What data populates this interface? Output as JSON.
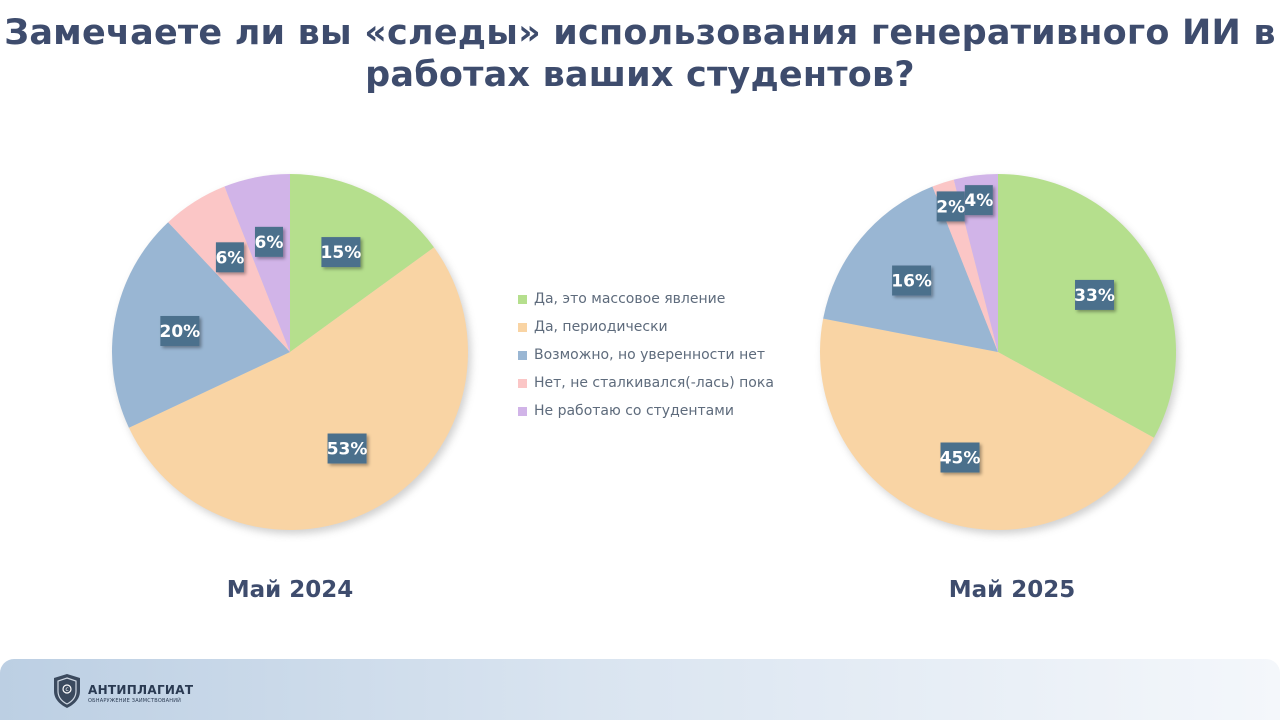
{
  "title_lines": [
    "Замечаете ли вы «следы» использования генеративного ИИ в",
    "работах ваших студентов?"
  ],
  "colors": [
    "#b5df8d",
    "#f9d4a4",
    "#99b6d3",
    "#fbc6c6",
    "#d1b4e8"
  ],
  "label_box_color": "#4c6f8c",
  "chart_data": [
    {
      "type": "pie",
      "title": "Май 2024",
      "categories": [
        "Да, это массовое явление",
        "Да, периодически",
        "Возможно, но уверенности нет",
        "Нет, не сталкивался(-лась) пока",
        "Не работаю со студентами"
      ],
      "values": [
        15,
        53,
        20,
        6,
        6
      ],
      "data_labels": [
        "15%",
        "53%",
        "20%",
        "6%",
        "6%"
      ]
    },
    {
      "type": "pie",
      "title": "Май 2025",
      "categories": [
        "Да, это массовое явление",
        "Да, периодически",
        "Возможно, но уверенности нет",
        "Нет, не сталкивался(-лась) пока",
        "Не работаю со студентами"
      ],
      "values": [
        33,
        45,
        16,
        2,
        4
      ],
      "data_labels": [
        "33%",
        "45%",
        "16%",
        "2%",
        "4%"
      ]
    }
  ],
  "legend": {
    "placement": "center",
    "items": [
      "Да, это массовое явление",
      "Да, периодически",
      "Возможно, но уверенности нет",
      "Нет, не сталкивался(-лась) пока",
      "Не работаю со студентами"
    ]
  },
  "footer": {
    "logo_name": "АНТИПЛАГИАТ",
    "logo_sub": "ОБНАРУЖЕНИЕ ЗАИМСТВОВАНИЙ",
    "logo_icon": "shield-icon"
  }
}
